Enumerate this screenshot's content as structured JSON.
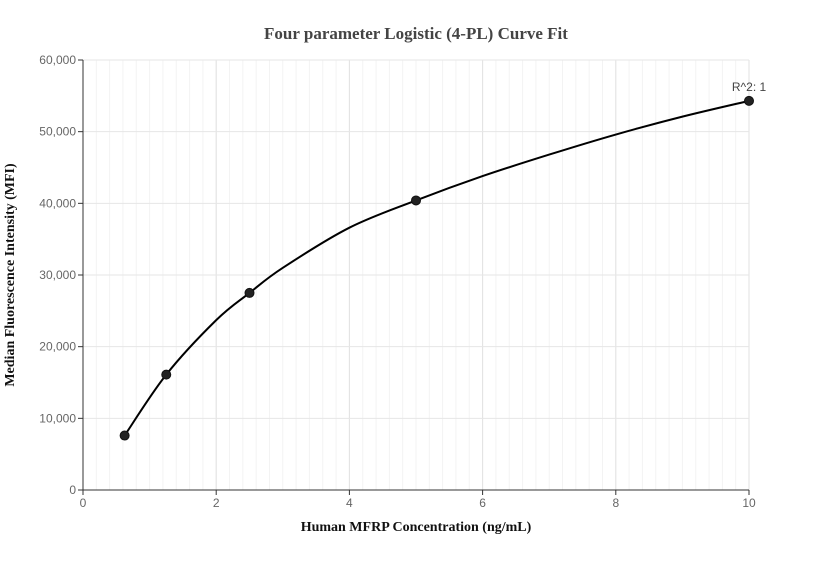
{
  "chart_data": {
    "type": "scatter",
    "title": "Four parameter Logistic (4-PL) Curve Fit",
    "xlabel": "Human MFRP Concentration (ng/mL)",
    "ylabel": "Median Fluorescence Intensity (MFI)",
    "xlim": [
      0,
      10
    ],
    "ylim": [
      0,
      60000
    ],
    "x_ticks": [
      0,
      2,
      4,
      6,
      8,
      10
    ],
    "x_tick_labels": [
      "0",
      "2",
      "4",
      "6",
      "8",
      "10"
    ],
    "y_ticks": [
      0,
      10000,
      20000,
      30000,
      40000,
      50000,
      60000
    ],
    "y_tick_labels": [
      "0",
      "10,000",
      "20,000",
      "30,000",
      "40,000",
      "50,000",
      "60,000"
    ],
    "grid": true,
    "series": [
      {
        "points": [
          {
            "x": 0.625,
            "y": 7600
          },
          {
            "x": 1.25,
            "y": 16100
          },
          {
            "x": 2.5,
            "y": 27500
          },
          {
            "x": 5,
            "y": 40400
          },
          {
            "x": 10,
            "y": 54300
          }
        ],
        "marker_color": "#222222"
      }
    ],
    "fit_curve": {
      "line_color": "#000000",
      "points": [
        {
          "x": 0.625,
          "y": 7600
        },
        {
          "x": 1.25,
          "y": 16100
        },
        {
          "x": 2.0,
          "y": 23700
        },
        {
          "x": 2.5,
          "y": 27500
        },
        {
          "x": 3.0,
          "y": 31000
        },
        {
          "x": 4.0,
          "y": 36600
        },
        {
          "x": 5.0,
          "y": 40400
        },
        {
          "x": 6.0,
          "y": 43800
        },
        {
          "x": 7.0,
          "y": 46800
        },
        {
          "x": 8.0,
          "y": 49600
        },
        {
          "x": 9.0,
          "y": 52100
        },
        {
          "x": 10.0,
          "y": 54300
        }
      ]
    },
    "annotation": {
      "text": "R^2: 1",
      "x": 10,
      "y": 54300
    }
  }
}
